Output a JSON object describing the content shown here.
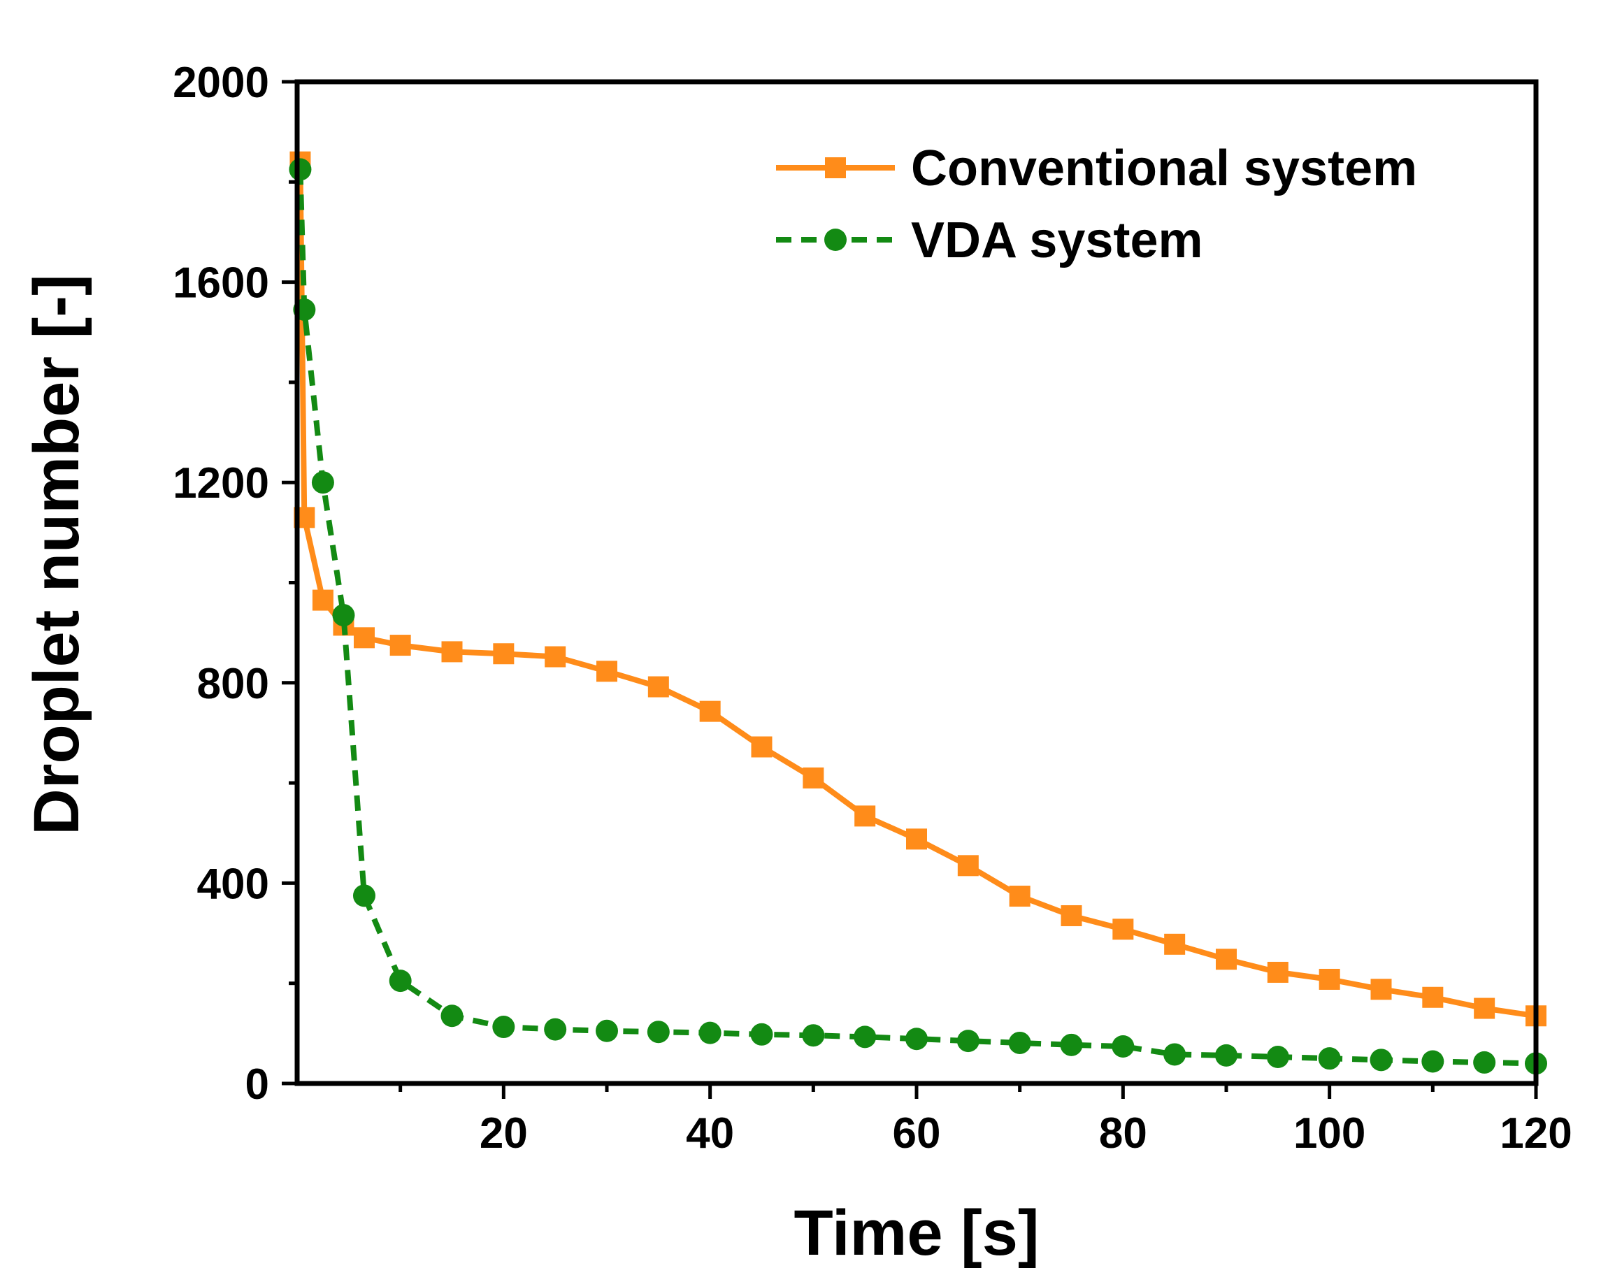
{
  "chart_data": {
    "type": "line",
    "xlabel": "Time [s]",
    "ylabel": "Droplet number [-]",
    "xlim": [
      0,
      120
    ],
    "ylim": [
      0,
      2000
    ],
    "x_ticks": [
      20,
      40,
      60,
      80,
      100,
      120
    ],
    "y_ticks": [
      0,
      400,
      800,
      1200,
      1600,
      2000
    ],
    "grid": false,
    "legend_position": "top-right",
    "series": [
      {
        "name": "Conventional system",
        "color": "#FF8C1A",
        "line_style": "solid",
        "marker": "square",
        "x": [
          0.3,
          0.7,
          2.5,
          4.5,
          6.5,
          10,
          15,
          20,
          25,
          30,
          35,
          40,
          45,
          50,
          55,
          60,
          65,
          70,
          75,
          80,
          85,
          90,
          95,
          100,
          105,
          110,
          115,
          120
        ],
        "y": [
          1840,
          1130,
          965,
          915,
          890,
          875,
          862,
          858,
          852,
          823,
          792,
          743,
          672,
          610,
          534,
          488,
          435,
          374,
          335,
          308,
          278,
          248,
          222,
          208,
          188,
          172,
          150,
          135
        ]
      },
      {
        "name": "VDA system",
        "color": "#138A13",
        "line_style": "dashed",
        "marker": "circle",
        "x": [
          0.3,
          0.7,
          2.5,
          4.5,
          6.5,
          10,
          15,
          20,
          25,
          30,
          35,
          40,
          45,
          50,
          55,
          60,
          65,
          70,
          75,
          80,
          85,
          90,
          95,
          100,
          105,
          110,
          115,
          120
        ],
        "y": [
          1825,
          1545,
          1200,
          935,
          375,
          205,
          135,
          113,
          108,
          105,
          103,
          101,
          98,
          96,
          93,
          89,
          85,
          81,
          77,
          74,
          58,
          56,
          53,
          50,
          47,
          44,
          42,
          40
        ]
      }
    ]
  }
}
